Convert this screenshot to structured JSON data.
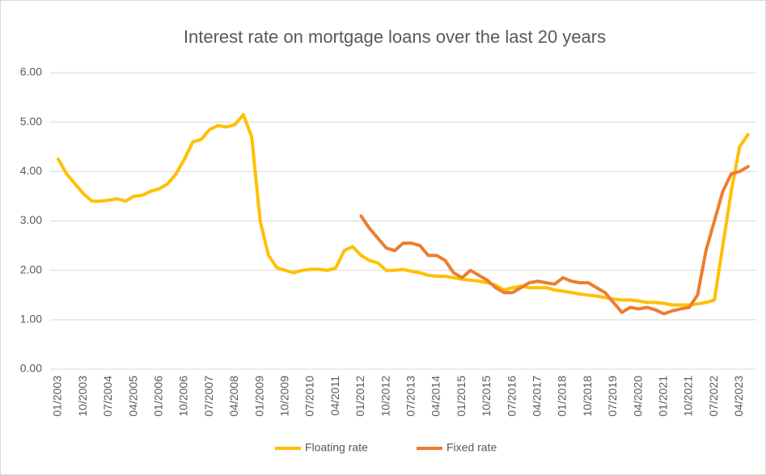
{
  "chart_data": {
    "type": "line",
    "title": "Interest rate on mortgage loans over the last 20 years",
    "categories": [
      "01/2003",
      null,
      null,
      "10/2003",
      null,
      null,
      "07/2004",
      null,
      null,
      "04/2005",
      null,
      null,
      "01/2006",
      null,
      null,
      "10/2006",
      null,
      null,
      "07/2007",
      null,
      null,
      "04/2008",
      null,
      null,
      "01/2009",
      null,
      null,
      "10/2009",
      null,
      null,
      "07/2010",
      null,
      null,
      "04/2011",
      null,
      null,
      "01/2012",
      null,
      null,
      "10/2012",
      null,
      null,
      "07/2013",
      null,
      null,
      "04/2014",
      null,
      null,
      "01/2015",
      null,
      null,
      "10/2015",
      null,
      null,
      "07/2016",
      null,
      null,
      "04/2017",
      null,
      null,
      "01/2018",
      null,
      null,
      "10/2018",
      null,
      null,
      "07/2019",
      null,
      null,
      "04/2020",
      null,
      null,
      "01/2021",
      null,
      null,
      "10/2021",
      null,
      null,
      "07/2022",
      null,
      null,
      "04/2023",
      null
    ],
    "series": [
      {
        "name": "Floating rate",
        "color": "#ffc000",
        "values": [
          4.25,
          3.95,
          3.75,
          3.55,
          3.4,
          3.4,
          3.42,
          3.45,
          3.4,
          3.5,
          3.52,
          3.6,
          3.65,
          3.75,
          3.95,
          4.25,
          4.6,
          4.65,
          4.85,
          4.93,
          4.9,
          4.95,
          5.15,
          4.7,
          3.0,
          2.3,
          2.05,
          2.0,
          1.95,
          2.0,
          2.02,
          2.02,
          2.0,
          2.05,
          2.4,
          2.48,
          2.3,
          2.2,
          2.15,
          2.0,
          2.0,
          2.02,
          1.98,
          1.95,
          1.9,
          1.88,
          1.88,
          1.85,
          1.82,
          1.8,
          1.78,
          1.75,
          1.7,
          1.6,
          1.65,
          1.68,
          1.65,
          1.65,
          1.65,
          1.6,
          1.58,
          1.55,
          1.52,
          1.5,
          1.48,
          1.45,
          1.42,
          1.4,
          1.4,
          1.38,
          1.35,
          1.35,
          1.33,
          1.3,
          1.3,
          1.3,
          1.32,
          1.35,
          1.4,
          2.5,
          3.6,
          4.5,
          4.75
        ]
      },
      {
        "name": "Fixed rate",
        "color": "#ed7d31",
        "values": [
          null,
          null,
          null,
          null,
          null,
          null,
          null,
          null,
          null,
          null,
          null,
          null,
          null,
          null,
          null,
          null,
          null,
          null,
          null,
          null,
          null,
          null,
          null,
          null,
          null,
          null,
          null,
          null,
          null,
          null,
          null,
          null,
          null,
          null,
          null,
          null,
          3.1,
          2.85,
          2.65,
          2.45,
          2.4,
          2.55,
          2.55,
          2.5,
          2.3,
          2.3,
          2.2,
          1.95,
          1.85,
          2.0,
          1.9,
          1.8,
          1.65,
          1.55,
          1.55,
          1.65,
          1.75,
          1.78,
          1.75,
          1.72,
          1.85,
          1.78,
          1.75,
          1.75,
          1.65,
          1.55,
          1.35,
          1.15,
          1.25,
          1.22,
          1.25,
          1.2,
          1.12,
          1.18,
          1.22,
          1.25,
          1.5,
          2.4,
          3.0,
          3.6,
          3.95,
          4.0,
          4.1
        ]
      }
    ],
    "ylim": [
      0,
      6
    ],
    "yticks": [
      {
        "value": 0,
        "label": "0.00"
      },
      {
        "value": 1,
        "label": "1.00"
      },
      {
        "value": 2,
        "label": "2.00"
      },
      {
        "value": 3,
        "label": "3.00"
      },
      {
        "value": 4,
        "label": "4.00"
      },
      {
        "value": 5,
        "label": "5.00"
      },
      {
        "value": 6,
        "label": "6.00"
      }
    ],
    "grid": true,
    "legend": "bottom"
  }
}
